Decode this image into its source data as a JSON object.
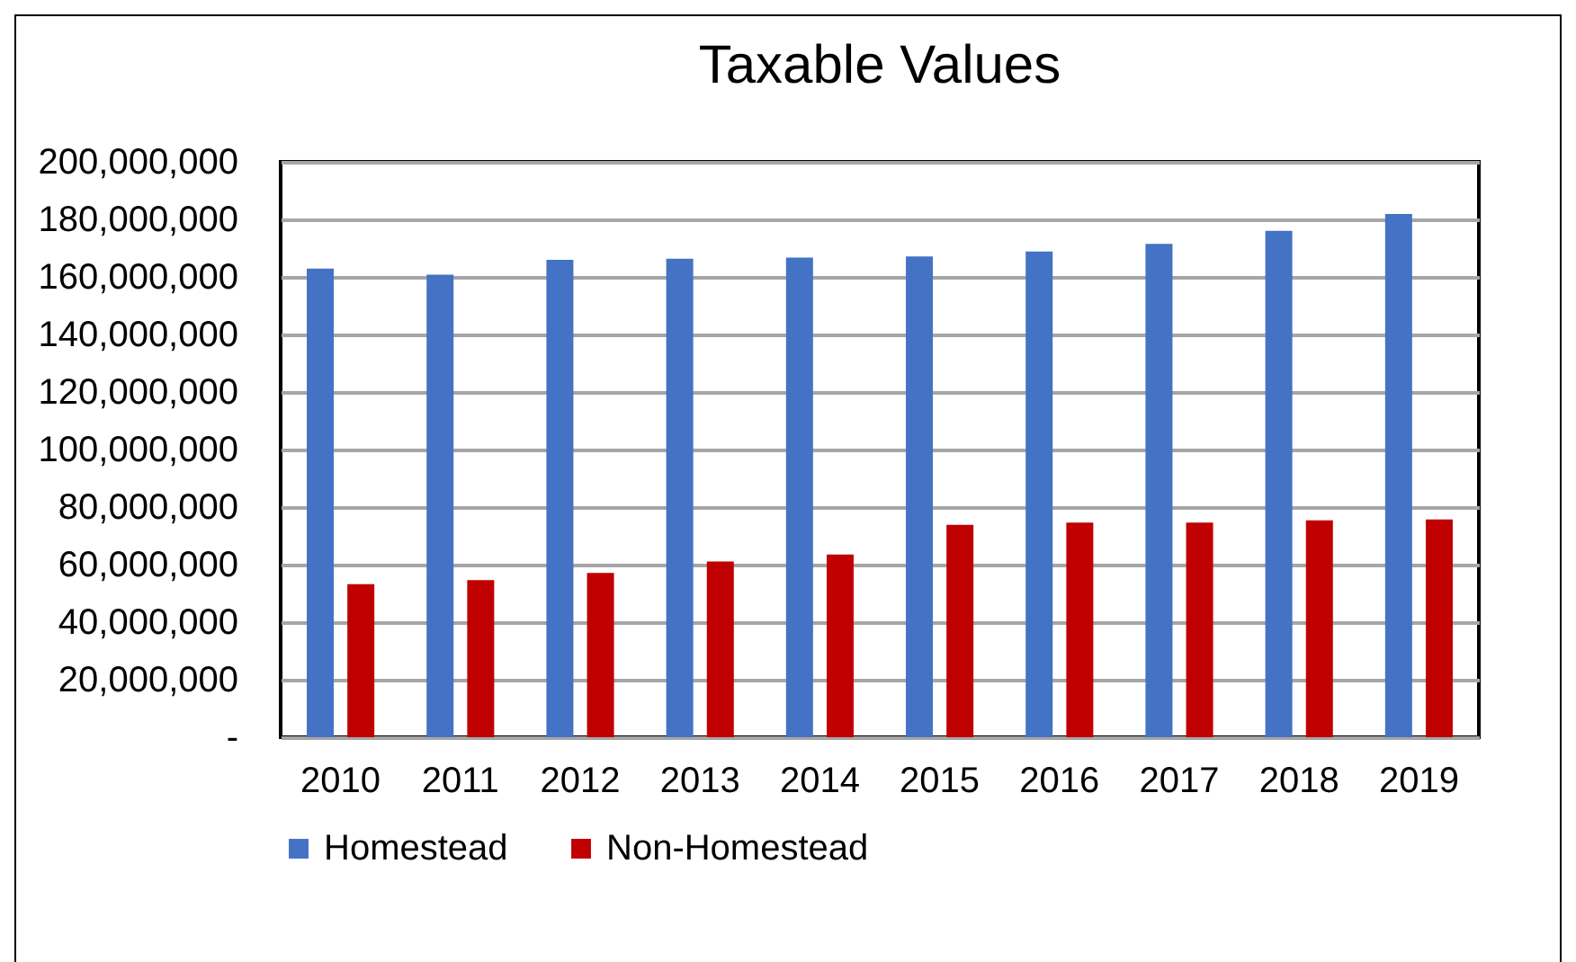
{
  "chart_data": {
    "type": "bar",
    "title": "Taxable Values",
    "categories": [
      "2010",
      "2011",
      "2012",
      "2013",
      "2014",
      "2015",
      "2016",
      "2017",
      "2018",
      "2019"
    ],
    "series": [
      {
        "name": "Homestead",
        "color": "#4472c4",
        "values": [
          162900000,
          160800000,
          165900000,
          166300000,
          166700000,
          167100000,
          168800000,
          171500000,
          176000000,
          181900000
        ]
      },
      {
        "name": "Non-Homestead",
        "color": "#c00000",
        "values": [
          53200000,
          54600000,
          57100000,
          61100000,
          63500000,
          73800000,
          74600000,
          74600000,
          75400000,
          75700000
        ]
      }
    ],
    "ylim": [
      0,
      200000000
    ],
    "yticks": [
      {
        "value": 0,
        "label": "-"
      },
      {
        "value": 20000000,
        "label": "20,000,000"
      },
      {
        "value": 40000000,
        "label": "40,000,000"
      },
      {
        "value": 60000000,
        "label": "60,000,000"
      },
      {
        "value": 80000000,
        "label": "80,000,000"
      },
      {
        "value": 100000000,
        "label": "100,000,000"
      },
      {
        "value": 120000000,
        "label": "120,000,000"
      },
      {
        "value": 140000000,
        "label": "140,000,000"
      },
      {
        "value": 160000000,
        "label": "160,000,000"
      },
      {
        "value": 180000000,
        "label": "180,000,000"
      },
      {
        "value": 200000000,
        "label": "200,000,000"
      }
    ],
    "grid": "y",
    "legend": "bottom"
  }
}
